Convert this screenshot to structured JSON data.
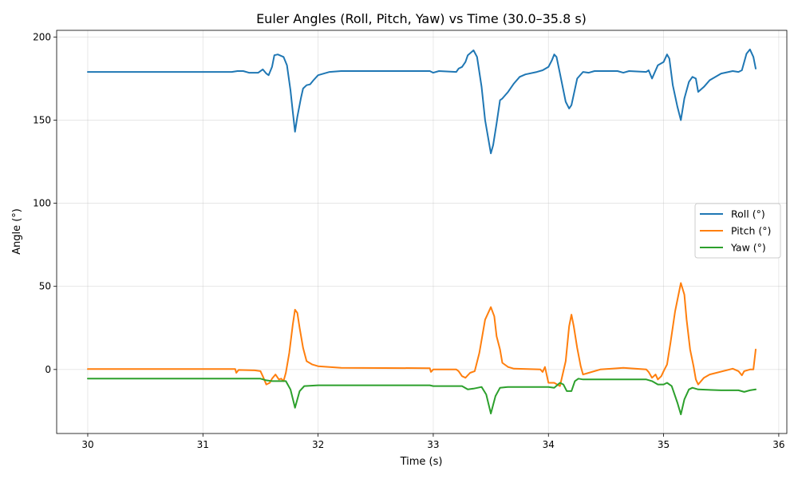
{
  "chart_data": {
    "type": "line",
    "title": "Euler Angles (Roll, Pitch, Yaw) vs Time (30.0–35.8 s)",
    "xlabel": "Time (s)",
    "ylabel": "Angle (°)",
    "xlim": [
      29.73,
      36.07
    ],
    "ylim": [
      -38.5,
      204
    ],
    "xticks": [
      30,
      31,
      32,
      33,
      34,
      35,
      36
    ],
    "yticks": [
      0,
      50,
      100,
      150,
      200
    ],
    "grid": true,
    "legend_position": "center-right",
    "series": [
      {
        "name": "Roll (°)",
        "color": "#1f77b4",
        "points": [
          [
            30.0,
            179
          ],
          [
            31.25,
            179
          ],
          [
            31.3,
            179.5
          ],
          [
            31.35,
            179.5
          ],
          [
            31.4,
            178.5
          ],
          [
            31.48,
            178.5
          ],
          [
            31.52,
            180.5
          ],
          [
            31.55,
            178
          ],
          [
            31.57,
            177
          ],
          [
            31.6,
            182
          ],
          [
            31.62,
            189
          ],
          [
            31.65,
            189.5
          ],
          [
            31.7,
            188
          ],
          [
            31.73,
            183
          ],
          [
            31.76,
            168
          ],
          [
            31.78,
            155
          ],
          [
            31.8,
            143
          ],
          [
            31.82,
            152
          ],
          [
            31.85,
            163
          ],
          [
            31.87,
            169
          ],
          [
            31.9,
            171
          ],
          [
            31.93,
            171.5
          ],
          [
            31.96,
            174
          ],
          [
            32.0,
            177
          ],
          [
            32.1,
            179
          ],
          [
            32.2,
            179.5
          ],
          [
            32.5,
            179.5
          ],
          [
            32.97,
            179.5
          ],
          [
            33.0,
            178.5
          ],
          [
            33.05,
            179.5
          ],
          [
            33.2,
            179
          ],
          [
            33.22,
            181
          ],
          [
            33.25,
            182
          ],
          [
            33.28,
            185
          ],
          [
            33.3,
            189
          ],
          [
            33.35,
            192
          ],
          [
            33.38,
            188
          ],
          [
            33.42,
            170
          ],
          [
            33.45,
            150
          ],
          [
            33.5,
            130
          ],
          [
            33.52,
            135
          ],
          [
            33.55,
            148
          ],
          [
            33.58,
            162
          ],
          [
            33.6,
            163
          ],
          [
            33.65,
            167
          ],
          [
            33.7,
            172
          ],
          [
            33.75,
            176
          ],
          [
            33.8,
            177.5
          ],
          [
            33.9,
            179
          ],
          [
            33.95,
            180
          ],
          [
            34.0,
            182
          ],
          [
            34.03,
            186
          ],
          [
            34.05,
            189.5
          ],
          [
            34.07,
            188
          ],
          [
            34.1,
            178
          ],
          [
            34.15,
            161
          ],
          [
            34.18,
            157
          ],
          [
            34.2,
            159
          ],
          [
            34.25,
            175
          ],
          [
            34.3,
            179
          ],
          [
            34.35,
            178.5
          ],
          [
            34.4,
            179.5
          ],
          [
            34.6,
            179.5
          ],
          [
            34.65,
            178.5
          ],
          [
            34.7,
            179.5
          ],
          [
            34.85,
            179
          ],
          [
            34.87,
            180
          ],
          [
            34.9,
            175
          ],
          [
            34.95,
            183
          ],
          [
            35.0,
            185
          ],
          [
            35.03,
            189.5
          ],
          [
            35.05,
            187
          ],
          [
            35.08,
            171
          ],
          [
            35.12,
            158
          ],
          [
            35.15,
            150
          ],
          [
            35.18,
            163
          ],
          [
            35.22,
            173
          ],
          [
            35.25,
            176
          ],
          [
            35.28,
            175
          ],
          [
            35.3,
            167
          ],
          [
            35.35,
            170
          ],
          [
            35.4,
            174
          ],
          [
            35.5,
            178
          ],
          [
            35.6,
            179.5
          ],
          [
            35.65,
            179
          ],
          [
            35.68,
            180
          ],
          [
            35.72,
            190
          ],
          [
            35.75,
            192.5
          ],
          [
            35.78,
            188
          ],
          [
            35.8,
            181
          ]
        ]
      },
      {
        "name": "Pitch (°)",
        "color": "#ff7f0e",
        "points": [
          [
            30.0,
            0.3
          ],
          [
            31.28,
            0.3
          ],
          [
            31.29,
            -2
          ],
          [
            31.31,
            -0.3
          ],
          [
            31.45,
            -0.5
          ],
          [
            31.5,
            -1
          ],
          [
            31.52,
            -4
          ],
          [
            31.55,
            -9
          ],
          [
            31.58,
            -8
          ],
          [
            31.6,
            -5.5
          ],
          [
            31.63,
            -3
          ],
          [
            31.66,
            -6
          ],
          [
            31.68,
            -5.5
          ],
          [
            31.7,
            -7
          ],
          [
            31.72,
            -2
          ],
          [
            31.75,
            10
          ],
          [
            31.78,
            27
          ],
          [
            31.8,
            36
          ],
          [
            31.82,
            34
          ],
          [
            31.84,
            25
          ],
          [
            31.87,
            13
          ],
          [
            31.9,
            5
          ],
          [
            31.95,
            3
          ],
          [
            32.0,
            2
          ],
          [
            32.2,
            1
          ],
          [
            32.97,
            0.8
          ],
          [
            32.98,
            -1.5
          ],
          [
            33.0,
            0
          ],
          [
            33.2,
            0
          ],
          [
            33.22,
            -1
          ],
          [
            33.25,
            -4
          ],
          [
            33.28,
            -5
          ],
          [
            33.32,
            -2
          ],
          [
            33.36,
            -1
          ],
          [
            33.4,
            10
          ],
          [
            33.45,
            30
          ],
          [
            33.5,
            37.5
          ],
          [
            33.53,
            32
          ],
          [
            33.55,
            20
          ],
          [
            33.58,
            12
          ],
          [
            33.6,
            4
          ],
          [
            33.65,
            1.5
          ],
          [
            33.7,
            0.5
          ],
          [
            33.93,
            0
          ],
          [
            33.95,
            -1.5
          ],
          [
            33.97,
            1.5
          ],
          [
            34.0,
            -8
          ],
          [
            34.05,
            -8
          ],
          [
            34.1,
            -10
          ],
          [
            34.15,
            5
          ],
          [
            34.18,
            26
          ],
          [
            34.2,
            33
          ],
          [
            34.22,
            26
          ],
          [
            34.25,
            13
          ],
          [
            34.28,
            2
          ],
          [
            34.3,
            -3
          ],
          [
            34.35,
            -2
          ],
          [
            34.45,
            0
          ],
          [
            34.65,
            1
          ],
          [
            34.85,
            0
          ],
          [
            34.87,
            -1.5
          ],
          [
            34.9,
            -5
          ],
          [
            34.93,
            -3
          ],
          [
            34.95,
            -6
          ],
          [
            34.98,
            -4
          ],
          [
            35.0,
            -1
          ],
          [
            35.03,
            3
          ],
          [
            35.06,
            16
          ],
          [
            35.1,
            35
          ],
          [
            35.15,
            52
          ],
          [
            35.18,
            45
          ],
          [
            35.2,
            30
          ],
          [
            35.23,
            12
          ],
          [
            35.26,
            2
          ],
          [
            35.28,
            -6
          ],
          [
            35.3,
            -9
          ],
          [
            35.35,
            -5
          ],
          [
            35.4,
            -3
          ],
          [
            35.6,
            0.5
          ],
          [
            35.65,
            -1
          ],
          [
            35.68,
            -3.5
          ],
          [
            35.7,
            -1
          ],
          [
            35.75,
            0
          ],
          [
            35.78,
            0
          ],
          [
            35.8,
            12
          ]
        ]
      },
      {
        "name": "Yaw (°)",
        "color": "#2ca02c",
        "points": [
          [
            30.0,
            -5.5
          ],
          [
            31.5,
            -5.5
          ],
          [
            31.55,
            -6.5
          ],
          [
            31.6,
            -7
          ],
          [
            31.72,
            -7
          ],
          [
            31.76,
            -12
          ],
          [
            31.8,
            -23
          ],
          [
            31.84,
            -13
          ],
          [
            31.88,
            -10
          ],
          [
            32.0,
            -9.5
          ],
          [
            32.97,
            -9.5
          ],
          [
            33.0,
            -10
          ],
          [
            33.25,
            -10
          ],
          [
            33.3,
            -12
          ],
          [
            33.35,
            -11.5
          ],
          [
            33.42,
            -10.5
          ],
          [
            33.46,
            -15
          ],
          [
            33.5,
            -26.5
          ],
          [
            33.54,
            -16
          ],
          [
            33.58,
            -11
          ],
          [
            33.65,
            -10.5
          ],
          [
            34.0,
            -10.5
          ],
          [
            34.05,
            -11
          ],
          [
            34.1,
            -8
          ],
          [
            34.13,
            -9
          ],
          [
            34.16,
            -13
          ],
          [
            34.2,
            -13
          ],
          [
            34.23,
            -7
          ],
          [
            34.26,
            -5.5
          ],
          [
            34.3,
            -6
          ],
          [
            34.85,
            -6
          ],
          [
            34.9,
            -7
          ],
          [
            34.95,
            -9
          ],
          [
            35.0,
            -9
          ],
          [
            35.03,
            -8
          ],
          [
            35.07,
            -10
          ],
          [
            35.12,
            -20
          ],
          [
            35.15,
            -27
          ],
          [
            35.18,
            -18
          ],
          [
            35.22,
            -12
          ],
          [
            35.25,
            -11
          ],
          [
            35.3,
            -12
          ],
          [
            35.5,
            -12.5
          ],
          [
            35.65,
            -12.5
          ],
          [
            35.7,
            -13.5
          ],
          [
            35.75,
            -12.5
          ],
          [
            35.8,
            -12
          ]
        ]
      }
    ]
  }
}
